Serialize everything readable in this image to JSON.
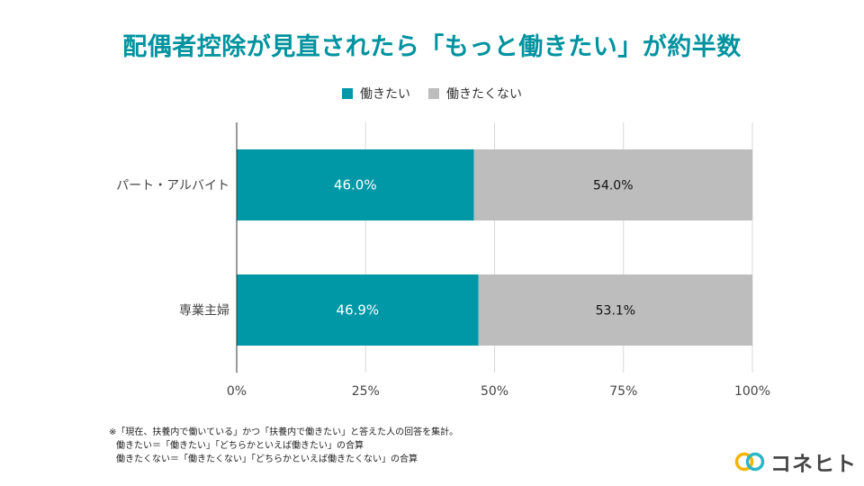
{
  "title": "配偶者控除が見直されたら「もっと働きたい」が約半数",
  "chart_data": {
    "type": "bar",
    "orientation": "horizontal",
    "stacked": true,
    "categories": [
      "パート・アルバイト",
      "専業主婦"
    ],
    "series": [
      {
        "name": "働きたい",
        "color": "#0097a7",
        "values": [
          46.0,
          46.9
        ],
        "labels": [
          "46.0%",
          "46.9%"
        ],
        "label_color": "#ffffff"
      },
      {
        "name": "働きたくない",
        "color": "#bdbdbd",
        "values": [
          54.0,
          53.1
        ],
        "labels": [
          "54.0%",
          "53.1%"
        ],
        "label_color": "#111111"
      }
    ],
    "xlim": [
      0,
      100
    ],
    "xticks": [
      0,
      25,
      50,
      75,
      100
    ],
    "xtick_labels": [
      "0%",
      "25%",
      "50%",
      "75%",
      "100%"
    ],
    "grid": true,
    "legend_position": "top-center"
  },
  "footnote": {
    "line1": "※「現在、扶養内で働いている」かつ「扶養内で働きたい」と答えた人の回答を集計。",
    "line2": "働きたい＝「働きたい」「どちらかといえば働きたい」の合算",
    "line3": "働きたくない＝「働きたくない」「どちらかといえば働きたくない」の合算"
  },
  "logo": {
    "text": "コネヒト"
  }
}
